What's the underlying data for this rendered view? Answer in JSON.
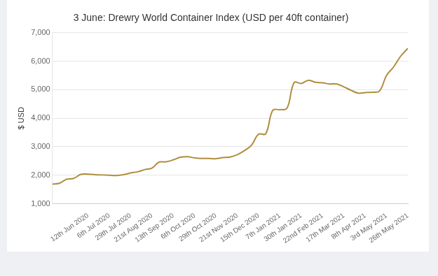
{
  "chart_data": {
    "type": "line",
    "title": "3 June: Drewry World Container Index (USD per 40ft container)",
    "y_label": "$ USD",
    "categories": [
      null,
      null,
      null,
      null,
      null,
      "12th Jun 2020",
      null,
      null,
      "6th Jul 2020",
      null,
      null,
      "29th Jul 2020",
      null,
      null,
      "21st Aug 2020",
      null,
      null,
      "13th Sep 2020",
      null,
      null,
      "6th Oct 2020",
      null,
      null,
      "29th Oct 2020",
      null,
      null,
      "21st Nov 2020",
      null,
      null,
      "15th Dec 2020",
      null,
      null,
      "7th Jan 2021",
      null,
      null,
      "30th Jan 2021",
      null,
      null,
      "22nd Feb 2021",
      null,
      null,
      "17th Mar 2021",
      null,
      null,
      "8th Apr 2021",
      null,
      null,
      "3rd May 2021",
      null,
      null,
      "26th May 2021"
    ],
    "values": [
      1690,
      1720,
      1860,
      1890,
      2030,
      2040,
      2020,
      2010,
      2000,
      1990,
      2020,
      2080,
      2120,
      2200,
      2250,
      2460,
      2470,
      2540,
      2630,
      2650,
      2610,
      2590,
      2590,
      2580,
      2620,
      2640,
      2720,
      2860,
      3050,
      3440,
      3450,
      4280,
      4300,
      4350,
      5250,
      5220,
      5330,
      5260,
      5240,
      5200,
      5200,
      5100,
      4980,
      4880,
      4900,
      4910,
      4950,
      5500,
      5800,
      6180,
      6450
    ],
    "color": "#b08d3e",
    "ylim": [
      1000,
      7000
    ],
    "yticks": [
      {
        "value": 1000,
        "label": "1,000"
      },
      {
        "value": 2000,
        "label": "2,000"
      },
      {
        "value": 3000,
        "label": "3,000"
      },
      {
        "value": 4000,
        "label": "4,000"
      },
      {
        "value": 5000,
        "label": "5,000"
      },
      {
        "value": 6000,
        "label": "6,000"
      },
      {
        "value": 7000,
        "label": "7,000"
      }
    ],
    "grid": true
  }
}
